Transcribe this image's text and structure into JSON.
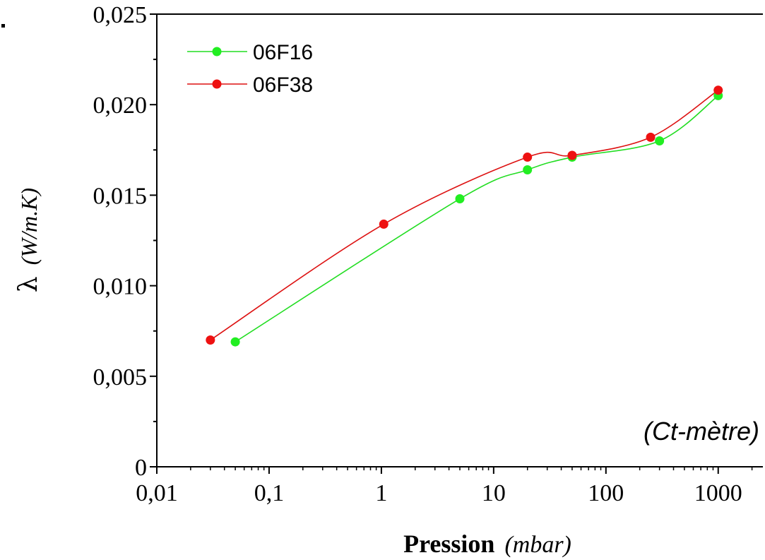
{
  "chart_data": {
    "type": "line",
    "x_scale": "log",
    "xlim": [
      0.01,
      2500
    ],
    "ylim": [
      0,
      0.025
    ],
    "xlabel": {
      "main": "Pression",
      "unit": "(mbar)"
    },
    "ylabel": {
      "symbol": "λ",
      "unit": "(W/m.K)"
    },
    "x_tick_labels": [
      "0,01",
      "0,1",
      "1",
      "10",
      "100",
      "1000"
    ],
    "x_tick_values": [
      0.01,
      0.1,
      1,
      10,
      100,
      1000
    ],
    "y_tick_labels": [
      "0",
      "0,005",
      "0,010",
      "0,015",
      "0,020",
      "0,025"
    ],
    "y_tick_values": [
      0,
      0.005,
      0.01,
      0.015,
      0.02,
      0.025
    ],
    "annotation": "(Ct-mètre)",
    "legend_position": "top-left",
    "grid": false,
    "series": [
      {
        "name": "06F16",
        "marker_color": "#22ee22",
        "line_color": "#22dd22",
        "x": [
          0.05,
          5,
          20,
          50,
          300,
          1000
        ],
        "y": [
          0.0069,
          0.0148,
          0.0164,
          0.0171,
          0.018,
          0.0205
        ]
      },
      {
        "name": "06F38",
        "marker_color": "#ee1111",
        "line_color": "#dd1111",
        "x": [
          0.03,
          1.05,
          20,
          50,
          250,
          1000
        ],
        "y": [
          0.007,
          0.0134,
          0.0171,
          0.0172,
          0.0182,
          0.0208
        ]
      }
    ]
  }
}
